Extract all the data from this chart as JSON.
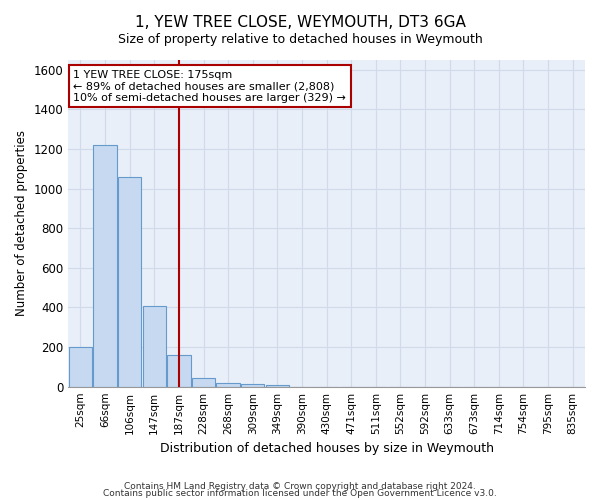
{
  "title": "1, YEW TREE CLOSE, WEYMOUTH, DT3 6GA",
  "subtitle": "Size of property relative to detached houses in Weymouth",
  "xlabel": "Distribution of detached houses by size in Weymouth",
  "ylabel": "Number of detached properties",
  "footnote1": "Contains HM Land Registry data © Crown copyright and database right 2024.",
  "footnote2": "Contains public sector information licensed under the Open Government Licence v3.0.",
  "categories": [
    "25sqm",
    "66sqm",
    "106sqm",
    "147sqm",
    "187sqm",
    "228sqm",
    "268sqm",
    "309sqm",
    "349sqm",
    "390sqm",
    "430sqm",
    "471sqm",
    "511sqm",
    "552sqm",
    "592sqm",
    "633sqm",
    "673sqm",
    "714sqm",
    "754sqm",
    "795sqm",
    "835sqm"
  ],
  "values": [
    200,
    1220,
    1060,
    410,
    160,
    45,
    20,
    15,
    10,
    0,
    0,
    0,
    0,
    0,
    0,
    0,
    0,
    0,
    0,
    0,
    0
  ],
  "bar_color": "#c6d9f0",
  "bar_edge_color": "#6699cc",
  "highlight_index": 4,
  "highlight_color": "#aa0000",
  "ylim": [
    0,
    1650
  ],
  "yticks": [
    0,
    200,
    400,
    600,
    800,
    1000,
    1200,
    1400,
    1600
  ],
  "annotation_line1": "1 YEW TREE CLOSE: 175sqm",
  "annotation_line2": "← 89% of detached houses are smaller (2,808)",
  "annotation_line3": "10% of semi-detached houses are larger (329) →",
  "bg_color": "#e8eff8",
  "grid_color": "#d0daea"
}
